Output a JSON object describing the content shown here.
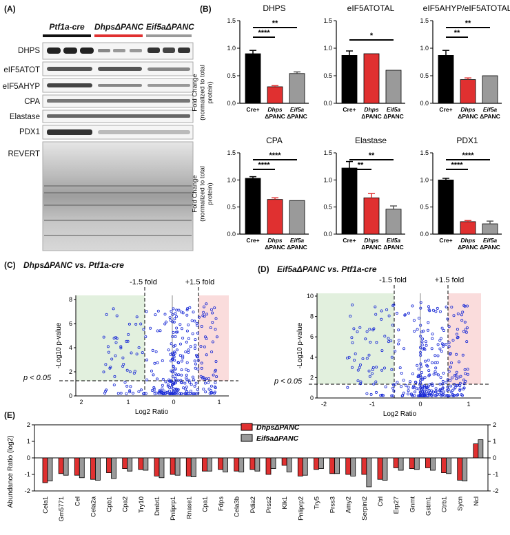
{
  "panelA": {
    "letter": "(A)",
    "groups": [
      {
        "name": "Ptf1a-cre",
        "color": "#111111"
      },
      {
        "name": "DhpsΔPANC",
        "color": "#e03030"
      },
      {
        "name": "Eif5aΔPANC",
        "color": "#9a9a9a"
      }
    ],
    "rows": [
      "DHPS",
      "eIF5ATOT",
      "eIF5AHYP",
      "CPA",
      "Elastase",
      "PDX1",
      "REVERT"
    ]
  },
  "panelB": {
    "letter": "(B)",
    "ylabel_line1": "Fold Change",
    "ylabel_line2": "(normalized to total protein)",
    "charts": [
      {
        "title": "DHPS",
        "categories": [
          "Cre+",
          "Dhps ΔPANC",
          "Eif5a ΔPANC"
        ],
        "values": [
          0.9,
          0.3,
          0.54
        ],
        "errors": [
          0.06,
          0.02,
          0.03
        ],
        "sig": [
          "****",
          "**"
        ]
      },
      {
        "title": "eIF5ATOTAL",
        "categories": [
          "Cre+",
          "Dhps ΔPANC",
          "Eif5a ΔPANC"
        ],
        "values": [
          0.87,
          0.9,
          0.6
        ],
        "errors": [
          0.08,
          0.0,
          0.0
        ],
        "sig": [
          "*"
        ]
      },
      {
        "title": "eIF5AHYP/eIF5ATOTAL",
        "categories": [
          "Cre+",
          "Dhps ΔPANC",
          "Eif5a ΔPANC"
        ],
        "values": [
          0.87,
          0.43,
          0.5
        ],
        "errors": [
          0.09,
          0.03,
          0.0
        ],
        "sig": [
          "**",
          "**"
        ]
      },
      {
        "title": "CPA",
        "categories": [
          "Cre+",
          "Dhps ΔPANC",
          "Eif5a ΔPANC"
        ],
        "values": [
          1.03,
          0.64,
          0.62
        ],
        "errors": [
          0.03,
          0.03,
          0.0
        ],
        "sig": [
          "****",
          "****"
        ]
      },
      {
        "title": "Elastase",
        "categories": [
          "Cre+",
          "Dhps ΔPANC",
          "Eif5a ΔPANC"
        ],
        "values": [
          1.22,
          0.67,
          0.46
        ],
        "errors": [
          0.12,
          0.08,
          0.06
        ],
        "sig": [
          "**",
          "**"
        ]
      },
      {
        "title": "PDX1",
        "categories": [
          "Cre+",
          "Dhps ΔPANC",
          "Eif5a ΔPANC"
        ],
        "values": [
          1.0,
          0.23,
          0.19
        ],
        "errors": [
          0.03,
          0.02,
          0.05
        ],
        "sig": [
          "****",
          "****"
        ]
      }
    ],
    "yticks": [
      "0.0",
      "0.5",
      "1.0",
      "1.5"
    ]
  },
  "panelC": {
    "letter": "(C)",
    "title": "DhpsΔPANC vs. Ptf1a-cre",
    "fold_left": "-1.5 fold",
    "fold_right": "+1.5 fold",
    "p_label": "p < 0.05",
    "ylabel": "-Log10 p-value",
    "xlabel": "Log2 Ratio",
    "xticks": [
      "2",
      "1",
      "0",
      "1"
    ],
    "yticks": [
      "0",
      "2",
      "4",
      "6",
      "8"
    ]
  },
  "panelD": {
    "letter": "(D)",
    "title": "Eif5aΔPANC vs. Ptf1a-cre",
    "fold_left": "-1.5 fold",
    "fold_right": "+1.5 fold",
    "p_label": "p < 0.05",
    "ylabel": "-Log10 p-value",
    "xlabel": "Log2 Ratio",
    "xticks": [
      "-2",
      "-1",
      "0",
      "1"
    ],
    "yticks": [
      "0",
      "2",
      "4",
      "6",
      "8",
      "10"
    ]
  },
  "panelE": {
    "letter": "(E)",
    "ylabel": "Abundance Ratio (log2)",
    "legend": [
      "DhpsΔPANC",
      "Eif5aΔPANC"
    ],
    "yticks": [
      "2",
      "1",
      "0",
      "-1",
      "-2"
    ]
  },
  "chart_data": {
    "type": "bar",
    "ylabel": "Abundance Ratio (log2)",
    "ylim": [
      -2,
      2
    ],
    "categories": [
      "Cela1",
      "Gm5771",
      "Cel",
      "Cela2a",
      "Cpb1",
      "Cpa2",
      "Try10",
      "Dmbt1",
      "Pnliprp1",
      "Rnase1",
      "Cpa1",
      "Fdps",
      "Cela3b",
      "Pdia2",
      "Prss2",
      "Klk1",
      "Pnliprp2",
      "Try5",
      "Prss3",
      "Amy2",
      "Serpini2",
      "Ctrl",
      "Erp27",
      "Gnmt",
      "Gstm1",
      "Ctrb1",
      "Sycn",
      "Ncl"
    ],
    "series": [
      {
        "name": "DhpsΔPANC",
        "color": "#e03030",
        "values": [
          -1.5,
          -0.95,
          -1.05,
          -1.3,
          -0.9,
          -0.65,
          -0.7,
          -1.1,
          -1.0,
          -1.1,
          -0.8,
          -0.7,
          -0.8,
          -0.7,
          -1.0,
          -0.45,
          -1.1,
          -0.7,
          -0.95,
          -1.0,
          -1.0,
          -1.3,
          -0.6,
          -0.65,
          -0.6,
          -0.9,
          -1.35,
          0.85
        ]
      },
      {
        "name": "Eif5aΔPANC",
        "color": "#9a9a9a",
        "values": [
          -1.4,
          -1.05,
          -1.2,
          -1.35,
          -1.25,
          -0.8,
          -0.75,
          -1.2,
          -1.05,
          -1.15,
          -0.8,
          -0.85,
          -0.85,
          -0.8,
          -0.65,
          -0.85,
          -1.05,
          -0.65,
          -0.95,
          -1.1,
          -1.75,
          -1.35,
          -0.75,
          -0.7,
          -0.75,
          -0.95,
          -1.4,
          1.1
        ]
      }
    ]
  }
}
